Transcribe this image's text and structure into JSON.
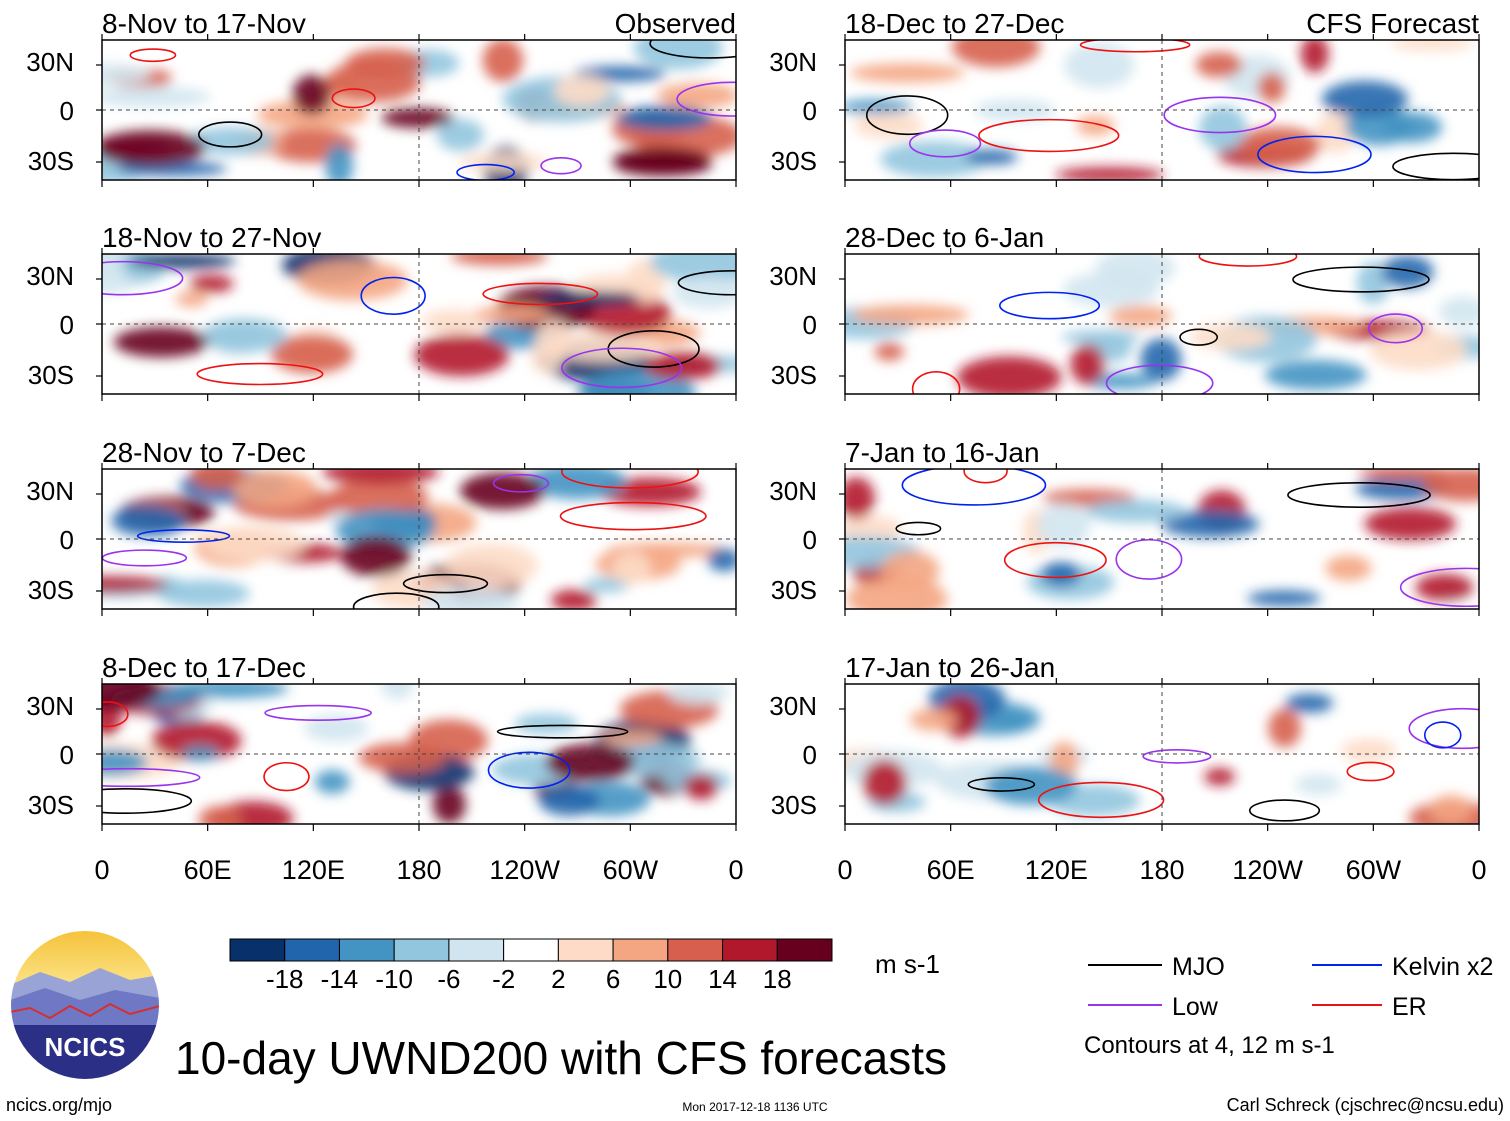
{
  "chart_data": {
    "type": "heatmap",
    "title": "10-day UWND200 with CFS forecasts",
    "variable": "200-hPa zonal wind anomaly",
    "units": "m s-1",
    "columns": [
      {
        "header": "Observed",
        "panels": [
          {
            "period": "8-Nov to 17-Nov"
          },
          {
            "period": "18-Nov to 27-Nov"
          },
          {
            "period": "28-Nov to 7-Dec"
          },
          {
            "period": "8-Dec to 17-Dec"
          }
        ]
      },
      {
        "header": "CFS Forecast",
        "panels": [
          {
            "period": "18-Dec to 27-Dec"
          },
          {
            "period": "28-Dec to 6-Jan"
          },
          {
            "period": "7-Jan to 16-Jan"
          },
          {
            "period": "17-Jan to 26-Jan"
          }
        ]
      }
    ],
    "x_ticks": [
      "0",
      "60E",
      "120E",
      "180",
      "120W",
      "60W",
      "0"
    ],
    "y_ticks": [
      "30N",
      "0",
      "30S"
    ],
    "colorbar": {
      "labels": [
        "-18",
        "-14",
        "-10",
        "-6",
        "-2",
        "2",
        "6",
        "10",
        "14",
        "18"
      ],
      "colors": [
        "#08306b",
        "#2166ac",
        "#4393c3",
        "#92c5de",
        "#d1e5f0",
        "#ffffff",
        "#fddbc7",
        "#f4a582",
        "#d6604d",
        "#b2182b",
        "#67001f"
      ]
    },
    "legend": [
      {
        "name": "MJO",
        "color": "#000000"
      },
      {
        "name": "Kelvin x2",
        "color": "#0022ee"
      },
      {
        "name": "Low",
        "color": "#9933ee"
      },
      {
        "name": "ER",
        "color": "#ee1111"
      }
    ],
    "contour_note": "Contours at 4, 12 m s-1"
  },
  "logo_text": "NCICS",
  "footer": {
    "left": "ncics.org/mjo",
    "center": "Mon 2017-12-18 1136 UTC",
    "right": "Carl Schreck (cjschrec@ncsu.edu)"
  }
}
